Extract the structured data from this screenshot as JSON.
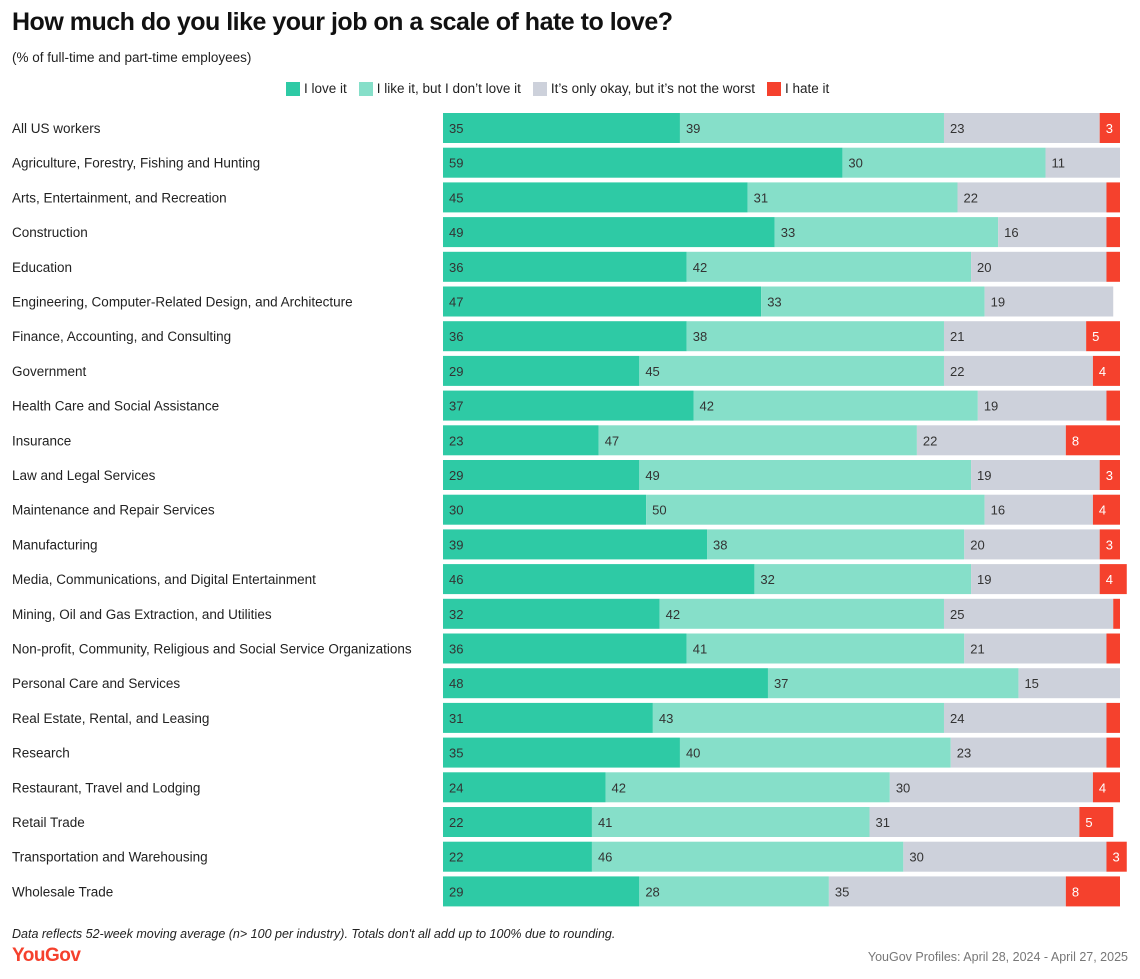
{
  "chart_data": {
    "type": "bar",
    "orientation": "horizontal",
    "stacked": true,
    "title": "How much do you like your job on a scale of hate to love?",
    "subtitle": "(% of full-time and part-time employees)",
    "legend_placement": "top",
    "xlim": [
      0,
      100
    ],
    "grid": false,
    "categories": [
      "All US workers",
      "Agriculture, Forestry, Fishing and Hunting",
      "Arts, Entertainment, and Recreation",
      "Construction",
      "Education",
      "Engineering, Computer-Related Design, and Architecture",
      "Finance, Accounting, and Consulting",
      "Government",
      "Health Care and Social Assistance",
      "Insurance",
      "Law and Legal Services",
      "Maintenance and Repair Services",
      "Manufacturing",
      "Media, Communications, and Digital Entertainment",
      "Mining, Oil and Gas Extraction, and Utilities",
      "Non-profit, Community, Religious and Social Service Organizations",
      "Personal Care and Services",
      "Real Estate, Rental, and Leasing",
      "Research",
      "Restaurant, Travel and Lodging",
      "Retail Trade",
      "Transportation and Warehousing",
      "Wholesale Trade"
    ],
    "series": [
      {
        "name": "I love it",
        "color": "#2ecaa5",
        "values": [
          35,
          59,
          45,
          49,
          36,
          47,
          36,
          29,
          37,
          23,
          29,
          30,
          39,
          46,
          32,
          36,
          48,
          31,
          35,
          24,
          22,
          22,
          29
        ]
      },
      {
        "name": "I like it, but I don’t love it",
        "color": "#86dfc9",
        "values": [
          39,
          30,
          31,
          33,
          42,
          33,
          38,
          45,
          42,
          47,
          49,
          50,
          38,
          32,
          42,
          41,
          37,
          43,
          40,
          42,
          41,
          46,
          28
        ]
      },
      {
        "name": "It’s only okay, but it’s not the worst",
        "color": "#cdd1db",
        "values": [
          23,
          11,
          22,
          16,
          20,
          19,
          21,
          22,
          19,
          22,
          19,
          16,
          20,
          19,
          25,
          21,
          15,
          24,
          23,
          30,
          31,
          30,
          35
        ]
      },
      {
        "name": "I hate it",
        "color": "#f5412d",
        "values": [
          3,
          0,
          2,
          2,
          2,
          0,
          5,
          4,
          2,
          8,
          3,
          4,
          3,
          4,
          1,
          2,
          0,
          2,
          2,
          4,
          5,
          3,
          8
        ]
      }
    ],
    "label_min": 3
  },
  "footnote": "Data reflects 52-week moving average (n> 100 per industry). Totals don't all add up to 100% due to rounding.",
  "logo": "YouGov",
  "source": "YouGov Profiles: April 28, 2024 - April 27, 2025"
}
